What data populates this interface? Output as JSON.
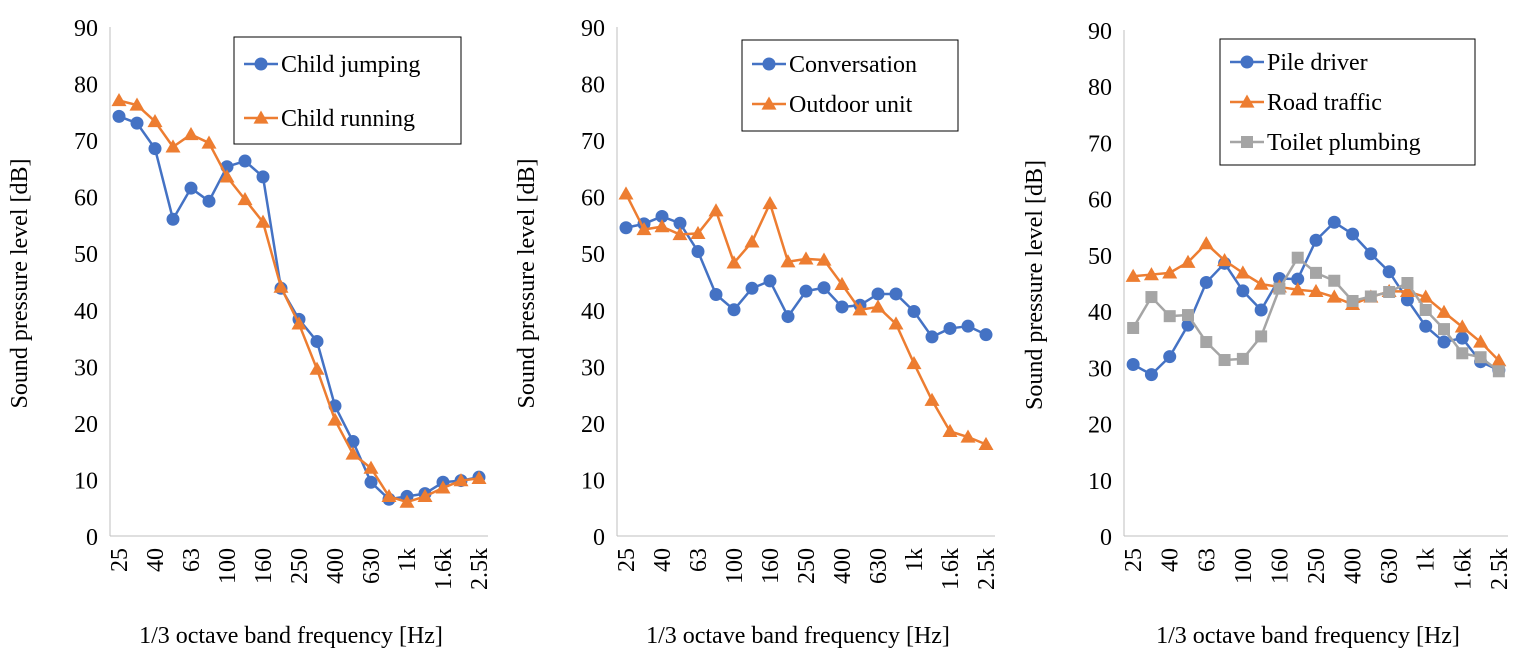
{
  "chart_data": [
    {
      "type": "line",
      "xlabel": "1/3 octave band frequency [Hz]",
      "ylabel": "Sound pressure level [dB]",
      "ylim": [
        0,
        90
      ],
      "yticks": [
        0,
        10,
        20,
        30,
        40,
        50,
        60,
        70,
        80,
        90
      ],
      "grid": false,
      "legend_position": "top-right",
      "categories": [
        "25",
        "31.5",
        "40",
        "50",
        "63",
        "80",
        "100",
        "125",
        "160",
        "200",
        "250",
        "315",
        "400",
        "500",
        "630",
        "800",
        "1k",
        "1.25k",
        "1.6k",
        "2k",
        "2.5k"
      ],
      "tick_labels": [
        "25",
        "40",
        "63",
        "100",
        "160",
        "250",
        "400",
        "630",
        "1k",
        "1.6k",
        "2.5k"
      ],
      "series": [
        {
          "name": "Child jumping",
          "marker": "circle",
          "color": "#4472C4",
          "values": [
            74.2,
            73,
            68.5,
            56,
            61.5,
            59.2,
            65.3,
            66.3,
            63.5,
            43.8,
            38.3,
            34.4,
            23,
            16.7,
            9.5,
            6.5,
            7,
            7.5,
            9.5,
            9.8,
            10.4
          ]
        },
        {
          "name": "Child running",
          "marker": "triangle",
          "color": "#ED7D31",
          "values": [
            77,
            76.2,
            73.3,
            68.8,
            71,
            69.5,
            63.5,
            59.5,
            55.5,
            44,
            37.5,
            29.5,
            20.5,
            14.5,
            12,
            7,
            6,
            7,
            8.5,
            9.8,
            10.2
          ]
        }
      ]
    },
    {
      "type": "line",
      "xlabel": "1/3 octave band frequency [Hz]",
      "ylabel": "Sound pressure level [dB]",
      "ylim": [
        0,
        90
      ],
      "yticks": [
        0,
        10,
        20,
        30,
        40,
        50,
        60,
        70,
        80,
        90
      ],
      "grid": false,
      "legend_position": "top-right",
      "categories": [
        "25",
        "31.5",
        "40",
        "50",
        "63",
        "80",
        "100",
        "125",
        "160",
        "200",
        "250",
        "315",
        "400",
        "500",
        "630",
        "800",
        "1k",
        "1.25k",
        "1.6k",
        "2k",
        "2.5k"
      ],
      "tick_labels": [
        "25",
        "40",
        "63",
        "100",
        "160",
        "250",
        "400",
        "630",
        "1k",
        "1.6k",
        "2.5k"
      ],
      "series": [
        {
          "name": "Conversation",
          "marker": "circle",
          "color": "#4472C4",
          "values": [
            54.5,
            55.2,
            56.5,
            55.3,
            50.3,
            42.7,
            40,
            43.8,
            45.1,
            38.8,
            43.3,
            43.9,
            40.5,
            40.8,
            42.8,
            42.8,
            39.7,
            35.2,
            36.7,
            37.1,
            35.6
          ]
        },
        {
          "name": "Outdoor unit",
          "marker": "triangle",
          "color": "#ED7D31",
          "values": [
            60.5,
            54.2,
            54.7,
            53.3,
            53.5,
            57.5,
            48.3,
            52,
            58.8,
            48.5,
            49,
            48.8,
            44.5,
            40,
            40.5,
            37.5,
            30.5,
            24,
            18.5,
            17.5,
            16.2
          ]
        }
      ]
    },
    {
      "type": "line",
      "xlabel": "1/3 octave band frequency [Hz]",
      "ylabel": "Sound pressure level [dB]",
      "ylim": [
        0,
        90
      ],
      "yticks": [
        0,
        10,
        20,
        30,
        40,
        50,
        60,
        70,
        80,
        90
      ],
      "grid": false,
      "legend_position": "top-right",
      "categories": [
        "25",
        "31.5",
        "40",
        "50",
        "63",
        "80",
        "100",
        "125",
        "160",
        "200",
        "250",
        "315",
        "400",
        "500",
        "630",
        "800",
        "1k",
        "1.25k",
        "1.6k",
        "2k",
        "2.5k"
      ],
      "tick_labels": [
        "25",
        "40",
        "63",
        "100",
        "160",
        "250",
        "400",
        "630",
        "1k",
        "1.6k",
        "2.5k"
      ],
      "series": [
        {
          "name": "Pile driver",
          "marker": "circle",
          "color": "#4472C4",
          "values": [
            30.5,
            28.7,
            31.9,
            37.5,
            45.1,
            48.5,
            43.6,
            40.2,
            45.8,
            45.7,
            52.6,
            55.8,
            53.7,
            50.2,
            47,
            42,
            37.3,
            34.5,
            35.2,
            31,
            29.5
          ]
        },
        {
          "name": "Road traffic",
          "marker": "triangle",
          "color": "#ED7D31",
          "values": [
            46.2,
            46.5,
            46.8,
            48.7,
            52,
            49,
            46.8,
            44.8,
            44.3,
            43.8,
            43.5,
            42.5,
            41.2,
            42.5,
            43.5,
            43.5,
            42.5,
            39.8,
            37.2,
            34.5,
            31.2
          ]
        },
        {
          "name": "Toilet plumbing",
          "marker": "square",
          "color": "#A5A5A5",
          "values": [
            37,
            42.5,
            39.1,
            39.3,
            34.5,
            31.3,
            31.5,
            35.5,
            44,
            49.5,
            46.8,
            45.4,
            41.8,
            42.6,
            43.4,
            45,
            40.2,
            36.8,
            32.5,
            31.8,
            29.3
          ]
        }
      ]
    }
  ]
}
